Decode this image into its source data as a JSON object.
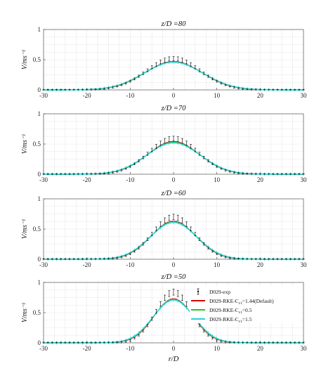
{
  "figure": {
    "x_axis_label": "r/D",
    "y_axis_label": "V/ms⁻¹",
    "legend": [
      {
        "name": "D029-exp",
        "color": "#000000",
        "marker": "errorbar"
      },
      {
        "name": "D029-RKE-Cₑ₁=1.44(Default)",
        "label_main": "D029-RKE-C",
        "label_sub": "ε1",
        "label_tail": "=1.44(Default)",
        "color": "#e00000"
      },
      {
        "name": "D029-RKE-Cₑ₁=0.5",
        "label_main": "D029-RKE-C",
        "label_sub": "ε1",
        "label_tail": "=0.5",
        "color": "#27c427"
      },
      {
        "name": "D029-RKE-Cₑ₁=1.5",
        "label_main": "D029-RKE-C",
        "label_sub": "ε1",
        "label_tail": "=1.5",
        "color": "#22d4d4"
      }
    ]
  },
  "chart_data": [
    {
      "type": "line",
      "title": "z/D =80",
      "title_main": "z/D =80",
      "xlim": [
        -30,
        30
      ],
      "ylim": [
        0,
        1
      ],
      "xticks": [
        "-30",
        "-20",
        "-10",
        "0",
        "10",
        "20",
        "30"
      ],
      "yticks": [
        "0",
        "0.5",
        "1"
      ],
      "grid": true,
      "series": [
        {
          "name": "D029-exp",
          "peak": 0.52,
          "sigma": 6.2,
          "err": 0.03
        },
        {
          "name": "D029-RKE-Cₑ₁=1.44(Default)",
          "peak": 0.47,
          "sigma": 6.6
        },
        {
          "name": "D029-RKE-Cₑ₁=0.5",
          "peak": 0.46,
          "sigma": 6.7
        },
        {
          "name": "D029-RKE-Cₑ₁=1.5",
          "peak": 0.46,
          "sigma": 6.8
        }
      ]
    },
    {
      "type": "line",
      "title": "z/D =70",
      "xlim": [
        -30,
        30
      ],
      "ylim": [
        0,
        1
      ],
      "xticks": [
        "-30",
        "-20",
        "-10",
        "0",
        "10",
        "20",
        "30"
      ],
      "yticks": [
        "0",
        "0.5",
        "1"
      ],
      "grid": true,
      "series": [
        {
          "name": "D029-exp",
          "peak": 0.59,
          "sigma": 5.7,
          "err": 0.035
        },
        {
          "name": "D029-RKE-Cₑ₁=1.44(Default)",
          "peak": 0.54,
          "sigma": 6.0
        },
        {
          "name": "D029-RKE-Cₑ₁=0.5",
          "peak": 0.53,
          "sigma": 6.1
        },
        {
          "name": "D029-RKE-Cₑ₁=1.5",
          "peak": 0.52,
          "sigma": 6.2
        }
      ]
    },
    {
      "type": "line",
      "title": "z/D =60",
      "xlim": [
        -30,
        30
      ],
      "ylim": [
        0,
        1
      ],
      "xticks": [
        "-30",
        "-20",
        "-10",
        "0",
        "10",
        "20",
        "30"
      ],
      "yticks": [
        "0",
        "0.5",
        "1"
      ],
      "grid": true,
      "series": [
        {
          "name": "D029-exp",
          "peak": 0.7,
          "sigma": 4.9,
          "err": 0.04
        },
        {
          "name": "D029-RKE-Cₑ₁=1.44(Default)",
          "peak": 0.63,
          "sigma": 5.2
        },
        {
          "name": "D029-RKE-Cₑ₁=0.5",
          "peak": 0.62,
          "sigma": 5.3
        },
        {
          "name": "D029-RKE-Cₑ₁=1.5",
          "peak": 0.61,
          "sigma": 5.4
        }
      ]
    },
    {
      "type": "line",
      "title": "z/D =50",
      "xlim": [
        -30,
        30
      ],
      "ylim": [
        0,
        1
      ],
      "xticks": [
        "-30",
        "-20",
        "-10",
        "0",
        "10",
        "20",
        "30"
      ],
      "yticks": [
        "0",
        "0.5",
        "1"
      ],
      "grid": true,
      "legend_position": "top-right",
      "series": [
        {
          "name": "D029-exp",
          "peak": 0.84,
          "sigma": 4.1,
          "err": 0.045
        },
        {
          "name": "D029-RKE-Cₑ₁=1.44(Default)",
          "peak": 0.73,
          "sigma": 4.5
        },
        {
          "name": "D029-RKE-Cₑ₁=0.5",
          "peak": 0.72,
          "sigma": 4.6
        },
        {
          "name": "D029-RKE-Cₑ₁=1.5",
          "peak": 0.71,
          "sigma": 4.7
        }
      ]
    }
  ]
}
